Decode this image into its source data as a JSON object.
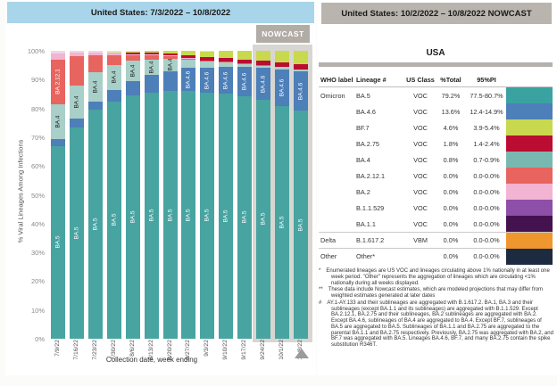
{
  "left_panel": {
    "title": "United States: 7/3/2022 – 10/8/2022",
    "header_bg": "#a9d5ea",
    "nowcast_label": "NOWCAST",
    "nowcast_badge_bg": "#b2aca7",
    "nowcast_band_bg": "#d8d6d2"
  },
  "right_panel": {
    "title": "United States: 10/2/2022 – 10/8/2022 NOWCAST",
    "header_bg": "#b9b4ae",
    "region_label": "USA",
    "table": {
      "headers": {
        "who": "WHO label",
        "lineage": "Lineage #",
        "us_class": "US Class",
        "total": "%Total",
        "pi": "95%PI"
      },
      "rows": [
        {
          "who": "Omicron",
          "lineage": "BA.5",
          "us_class": "VOC",
          "total": "79.2%",
          "pi": "77.5-80.7%",
          "swatch": "#3aa3a1",
          "separator": false
        },
        {
          "who": "",
          "lineage": "BA.4.6",
          "us_class": "VOC",
          "total": "13.6%",
          "pi": "12.4-14.9%",
          "swatch": "#4d7fb8",
          "separator": false
        },
        {
          "who": "",
          "lineage": "BF.7",
          "us_class": "VOC",
          "total": "4.6%",
          "pi": "3.9-5.4%",
          "swatch": "#c9d94e",
          "separator": false
        },
        {
          "who": "",
          "lineage": "BA.2.75",
          "us_class": "VOC",
          "total": "1.8%",
          "pi": "1.4-2.4%",
          "swatch": "#bb0c32",
          "separator": false
        },
        {
          "who": "",
          "lineage": "BA.4",
          "us_class": "VOC",
          "total": "0.8%",
          "pi": "0.7-0.9%",
          "swatch": "#79b8b1",
          "separator": false
        },
        {
          "who": "",
          "lineage": "BA.2.12.1",
          "us_class": "VOC",
          "total": "0.0%",
          "pi": "0.0-0.0%",
          "swatch": "#e8645f",
          "separator": false
        },
        {
          "who": "",
          "lineage": "BA.2",
          "us_class": "VOC",
          "total": "0.0%",
          "pi": "0.0-0.0%",
          "swatch": "#f3b3d2",
          "separator": false
        },
        {
          "who": "",
          "lineage": "B.1.1.529",
          "us_class": "VOC",
          "total": "0.0%",
          "pi": "0.0-0.0%",
          "swatch": "#8d4fa8",
          "separator": false
        },
        {
          "who": "",
          "lineage": "BA.1.1",
          "us_class": "VOC",
          "total": "0.0%",
          "pi": "0.0-0.0%",
          "swatch": "#43124f",
          "separator": false
        },
        {
          "who": "Delta",
          "lineage": "B.1.617.2",
          "us_class": "VBM",
          "total": "0.0%",
          "pi": "0.0-0.0%",
          "swatch": "#f0962e",
          "separator": true
        },
        {
          "who": "Other",
          "lineage": "Other*",
          "us_class": "",
          "total": "0.0%",
          "pi": "0.0-0.0%",
          "swatch": "#1c2b40",
          "separator": true
        }
      ]
    },
    "footnotes": [
      {
        "marker": "*",
        "text": "Enumerated lineages are US VOC and lineages circulating above 1% nationally in at least one week period. \"Other\" represents the aggregation of lineages which are circulating <1% nationally during all weeks displayed."
      },
      {
        "marker": "**",
        "text": "These data include Nowcast estimates, which are modeled projections that may differ from weighted estimates generated at later dates"
      },
      {
        "marker": "#",
        "text": "AY.1-AY.133 and their sublineages are aggregated with B.1.617.2. BA.1, BA.3 and their sublineages (except BA.1.1 and its sublineages) are aggregated with B.1.1.529. Except BA.2.12.1, BA.2.75 and their sublineages, BA.2 sublineages are aggregated with BA.2. Except BA.4.6, sublineages of BA.4 are aggregated to BA.4. Except BF.7, sublineages of BA.5 are aggregated to BA.5. Sublineages of BA.1.1 and BA.2.75 are aggregated to the parental BA.1.1 and BA.2.75 respectively. Previously, BA.2.75 was aggregated with BA.2, and BF.7 was aggregated with BA.5. Lineages BA.4.6, BF.7, and many BA.2.75 contain the spike substitution R346T."
      }
    ]
  },
  "chart_data": {
    "type": "bar",
    "subtype": "stacked-100pct",
    "title": "United States: 7/3/2022 – 10/8/2022",
    "xlabel": "Collection date, week ending",
    "ylabel": "% Viral Lineages Among Infections",
    "ylim": [
      0,
      100
    ],
    "ytick_step": 10,
    "grid": false,
    "legend_position": "table-right-panel",
    "categories": [
      "7/9/22",
      "7/16/22",
      "7/23/22",
      "7/30/22",
      "8/6/22",
      "8/13/22",
      "8/20/22",
      "8/27/22",
      "9/3/22",
      "9/10/22",
      "9/17/22",
      "9/24/22",
      "10/1/22",
      "10/8/22"
    ],
    "nowcast_bars": [
      11,
      12,
      13
    ],
    "series": [
      {
        "name": "BA.5",
        "color": "#47a4a1",
        "label_color": "#ffffff",
        "label_bars": [
          0,
          1,
          2,
          3,
          4,
          5,
          6,
          7,
          8,
          9,
          10,
          11,
          12,
          13
        ],
        "values": [
          67.0,
          73.5,
          79.5,
          82.5,
          84.5,
          85.5,
          86.0,
          86.0,
          85.5,
          85.0,
          84.3,
          83.0,
          80.9,
          79.2
        ]
      },
      {
        "name": "BA.4.6",
        "color": "#4d7fb8",
        "label_color": "#ffffff",
        "label_bars": [
          7,
          8,
          9,
          10,
          11,
          12,
          13
        ],
        "values": [
          2.5,
          3.0,
          3.0,
          4.0,
          5.0,
          6.0,
          7.0,
          8.0,
          8.5,
          9.5,
          10.0,
          11.0,
          12.5,
          13.6
        ]
      },
      {
        "name": "BA.4",
        "color": "#a9cfc9",
        "label_color": "#1a1a1a",
        "label_bars": [
          0,
          1,
          2,
          3,
          4,
          5,
          6
        ],
        "values": [
          12.0,
          11.5,
          10.0,
          8.5,
          7.0,
          5.5,
          4.1,
          2.8,
          2.2,
          1.6,
          1.2,
          1.0,
          0.9,
          0.8
        ]
      },
      {
        "name": "BA.2.12.1",
        "color": "#e8645f",
        "label_color": "#ffffff",
        "label_bars": [
          0
        ],
        "values": [
          15.5,
          10.0,
          6.0,
          3.5,
          2.0,
          1.4,
          1.0,
          0.7,
          0.5,
          0.3,
          0.2,
          0.1,
          0.0,
          0.0
        ]
      },
      {
        "name": "BA.2",
        "color": "#f3b3d2",
        "label_color": "#1a1a1a",
        "label_bars": [],
        "values": [
          2.0,
          1.3,
          0.8,
          0.6,
          0.4,
          0.3,
          0.2,
          0.1,
          0.0,
          0.0,
          0.0,
          0.0,
          0.0,
          0.0
        ]
      },
      {
        "name": "BA.2.75",
        "color": "#bb0c32",
        "label_color": "#ffffff",
        "label_bars": [],
        "values": [
          0.0,
          0.0,
          0.0,
          0.2,
          0.4,
          0.6,
          0.7,
          0.9,
          1.0,
          1.1,
          1.3,
          1.5,
          1.7,
          1.8
        ]
      },
      {
        "name": "BF.7",
        "color": "#c9d94e",
        "label_color": "#1a1a1a",
        "label_bars": [],
        "values": [
          0.0,
          0.0,
          0.0,
          0.2,
          0.4,
          0.7,
          1.0,
          1.5,
          2.0,
          2.5,
          3.0,
          3.4,
          4.0,
          4.6
        ]
      },
      {
        "name": "Other",
        "color": "#ecd9e6",
        "label_color": "#1a1a1a",
        "label_bars": [],
        "values": [
          1.0,
          0.7,
          0.7,
          0.5,
          0.3,
          0.0,
          0.0,
          0.0,
          0.3,
          0.0,
          0.0,
          0.0,
          0.0,
          0.0
        ]
      }
    ]
  }
}
